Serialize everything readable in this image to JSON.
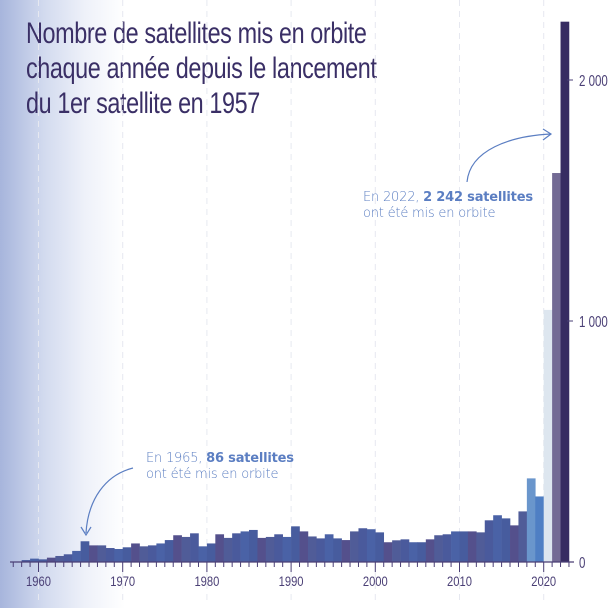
{
  "title_lines": [
    "Nombre de satellites mis en orbite",
    "chaque année depuis le lancement",
    "du 1er satellite en 1957"
  ],
  "annotations": [
    {
      "prefix": "En 1965, ",
      "bold": "86 satellites",
      "line2": "ont été mis en orbite"
    },
    {
      "prefix": "En 2022, ",
      "bold": "2 242 satellites",
      "line2": "ont été mis en orbite"
    }
  ],
  "colors": {
    "title": "#3a2f66",
    "annotation": "#5b7ec2",
    "bar": "#4a5b9c",
    "bar_2018": "#6a96cc",
    "bar_2019": "#4f7fc4",
    "bar_2020": "#dde6ef",
    "bar_2021": "#736a94",
    "bar_2022": "#372c62"
  },
  "chart_data": {
    "type": "bar",
    "title": "Nombre de satellites mis en orbite chaque année depuis le lancement du 1er satellite en 1957",
    "x": [
      1957,
      1958,
      1959,
      1960,
      1961,
      1962,
      1963,
      1964,
      1965,
      1966,
      1967,
      1968,
      1969,
      1970,
      1971,
      1972,
      1973,
      1974,
      1975,
      1976,
      1977,
      1978,
      1979,
      1980,
      1981,
      1982,
      1983,
      1984,
      1985,
      1986,
      1987,
      1988,
      1989,
      1990,
      1991,
      1992,
      1993,
      1994,
      1995,
      1996,
      1997,
      1998,
      1999,
      2000,
      2001,
      2002,
      2003,
      2004,
      2005,
      2006,
      2007,
      2008,
      2009,
      2010,
      2011,
      2012,
      2013,
      2014,
      2015,
      2016,
      2017,
      2018,
      2019,
      2020,
      2021,
      2022
    ],
    "values": [
      2,
      8,
      14,
      11,
      18,
      25,
      32,
      46,
      86,
      69,
      69,
      58,
      54,
      61,
      77,
      65,
      69,
      77,
      91,
      111,
      104,
      119,
      65,
      77,
      115,
      100,
      119,
      127,
      133,
      100,
      104,
      115,
      104,
      148,
      127,
      106,
      98,
      115,
      98,
      91,
      127,
      140,
      136,
      123,
      82,
      90,
      94,
      82,
      82,
      94,
      111,
      115,
      127,
      127,
      127,
      123,
      173,
      194,
      181,
      152,
      210,
      347,
      272,
      1046,
      1614,
      2242
    ],
    "x_ticks": [
      "1960",
      "1970",
      "1980",
      "1990",
      "2000",
      "2010",
      "2020"
    ],
    "y_ticks": [
      "0",
      "1 000",
      "2 000"
    ],
    "ylim": [
      0,
      2250
    ],
    "y_axis_side": "right",
    "grid": "vertical dashed at decades"
  }
}
